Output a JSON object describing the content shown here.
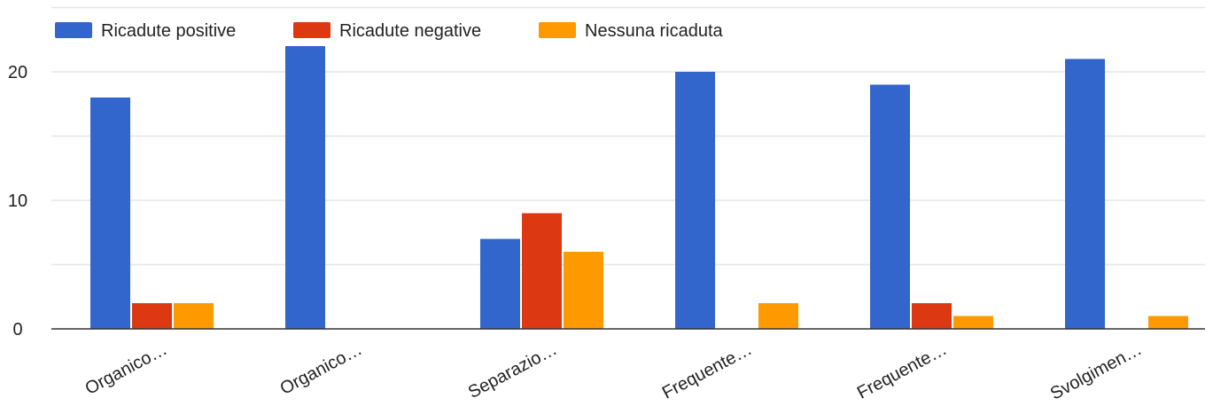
{
  "chart_data": {
    "type": "bar",
    "categories": [
      "Organico…",
      "Organico…",
      "Separazio…",
      "Frequente…",
      "Frequente…",
      "Svolgimen…"
    ],
    "series": [
      {
        "name": "Ricadute positive",
        "color": "#3366cc",
        "values": [
          18,
          22,
          7,
          20,
          19,
          21
        ]
      },
      {
        "name": "Ricadute negative",
        "color": "#dc3912",
        "values": [
          2,
          0,
          9,
          0,
          2,
          0
        ]
      },
      {
        "name": "Nessuna ricaduta",
        "color": "#ff9900",
        "values": [
          2,
          0,
          6,
          2,
          1,
          1
        ]
      }
    ],
    "yticks": [
      0,
      10,
      20
    ],
    "ylim": [
      0,
      20
    ],
    "grid": true,
    "legend": "top-left",
    "title": "",
    "xlabel": "",
    "ylabel": ""
  }
}
